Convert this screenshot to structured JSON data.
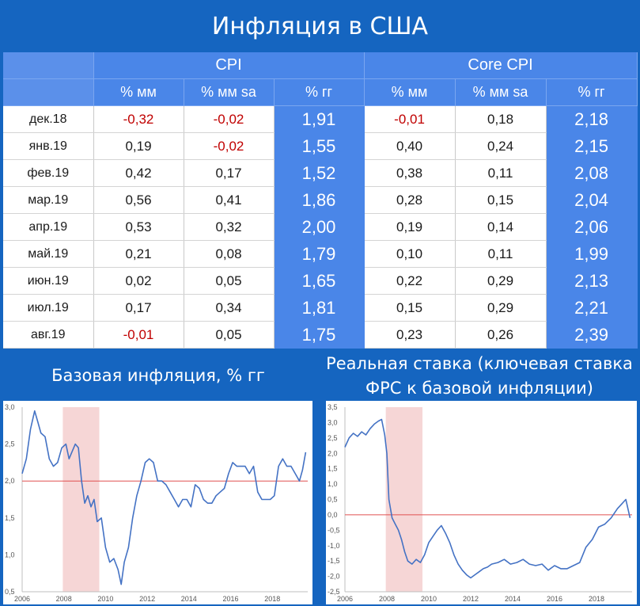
{
  "title": "Инфляция в США",
  "table": {
    "groups": [
      "CPI",
      "Core CPI"
    ],
    "subheaders": [
      "% мм",
      "% мм sa",
      "% гг",
      "% мм",
      "% мм sa",
      "% гг"
    ],
    "rows": [
      {
        "date": "дек.18",
        "cells": [
          "-0,32",
          "-0,02",
          "1,91",
          "-0,01",
          "0,18",
          "2,18"
        ]
      },
      {
        "date": "янв.19",
        "cells": [
          "0,19",
          "-0,02",
          "1,55",
          "0,40",
          "0,24",
          "2,15"
        ]
      },
      {
        "date": "фев.19",
        "cells": [
          "0,42",
          "0,17",
          "1,52",
          "0,38",
          "0,11",
          "2,08"
        ]
      },
      {
        "date": "мар.19",
        "cells": [
          "0,56",
          "0,41",
          "1,86",
          "0,28",
          "0,15",
          "2,04"
        ]
      },
      {
        "date": "апр.19",
        "cells": [
          "0,53",
          "0,32",
          "2,00",
          "0,19",
          "0,14",
          "2,06"
        ]
      },
      {
        "date": "май.19",
        "cells": [
          "0,21",
          "0,08",
          "1,79",
          "0,10",
          "0,11",
          "1,99"
        ]
      },
      {
        "date": "июн.19",
        "cells": [
          "0,02",
          "0,05",
          "1,65",
          "0,22",
          "0,29",
          "2,13"
        ]
      },
      {
        "date": "июл.19",
        "cells": [
          "0,17",
          "0,34",
          "1,81",
          "0,15",
          "0,29",
          "2,21"
        ]
      },
      {
        "date": "авг.19",
        "cells": [
          "-0,01",
          "0,05",
          "1,75",
          "0,23",
          "0,26",
          "2,39"
        ]
      }
    ]
  },
  "colors": {
    "line": "#4472c4",
    "reference": "#e05050",
    "recession": "#f6d6d6",
    "negative": "#c00000"
  },
  "chart_data": [
    {
      "type": "line",
      "title": "Базовая инфляция, % гг",
      "xlim": [
        2006,
        2019.7
      ],
      "ylim": [
        0.5,
        3.0
      ],
      "yticks": [
        "0,5",
        "1,0",
        "1,5",
        "2,0",
        "2,5",
        "3,0"
      ],
      "ytick_values": [
        0.5,
        1.0,
        1.5,
        2.0,
        2.5,
        3.0
      ],
      "xticks": [
        "2006",
        "2008",
        "2010",
        "2012",
        "2014",
        "2016",
        "2018"
      ],
      "xtick_values": [
        2006,
        2008,
        2010,
        2012,
        2014,
        2016,
        2018
      ],
      "reference_line": 2.0,
      "shaded_range": [
        2007.95,
        2009.7
      ],
      "series": [
        {
          "x": [
            2006,
            2006.2,
            2006.4,
            2006.6,
            2006.75,
            2006.9,
            2007.1,
            2007.3,
            2007.5,
            2007.7,
            2007.9,
            2008.1,
            2008.25,
            2008.4,
            2008.55,
            2008.7,
            2008.85,
            2009.0,
            2009.15,
            2009.3,
            2009.45,
            2009.6,
            2009.8,
            2010.0,
            2010.2,
            2010.4,
            2010.6,
            2010.75,
            2010.9,
            2011.1,
            2011.3,
            2011.5,
            2011.7,
            2011.9,
            2012.1,
            2012.3,
            2012.5,
            2012.7,
            2012.9,
            2013.1,
            2013.3,
            2013.5,
            2013.7,
            2013.9,
            2014.1,
            2014.3,
            2014.5,
            2014.7,
            2014.9,
            2015.1,
            2015.3,
            2015.5,
            2015.7,
            2015.9,
            2016.1,
            2016.3,
            2016.5,
            2016.7,
            2016.9,
            2017.1,
            2017.3,
            2017.5,
            2017.7,
            2017.9,
            2018.1,
            2018.3,
            2018.5,
            2018.7,
            2018.9,
            2019.1,
            2019.3,
            2019.45,
            2019.6
          ],
          "y": [
            2.1,
            2.3,
            2.7,
            2.95,
            2.8,
            2.65,
            2.6,
            2.3,
            2.2,
            2.25,
            2.45,
            2.5,
            2.3,
            2.4,
            2.5,
            2.45,
            2.0,
            1.7,
            1.8,
            1.65,
            1.75,
            1.45,
            1.5,
            1.1,
            0.9,
            0.95,
            0.8,
            0.6,
            0.9,
            1.1,
            1.5,
            1.8,
            2.0,
            2.25,
            2.3,
            2.25,
            2.0,
            2.0,
            1.95,
            1.85,
            1.75,
            1.65,
            1.75,
            1.75,
            1.65,
            1.95,
            1.9,
            1.75,
            1.7,
            1.7,
            1.8,
            1.85,
            1.9,
            2.1,
            2.25,
            2.2,
            2.2,
            2.2,
            2.1,
            2.2,
            1.85,
            1.75,
            1.75,
            1.75,
            1.8,
            2.2,
            2.3,
            2.2,
            2.2,
            2.1,
            2.0,
            2.15,
            2.39
          ]
        }
      ]
    },
    {
      "type": "line",
      "title": "Реальная ставка (ключевая ставка ФРС к базовой инфляции)",
      "xlim": [
        2006,
        2019.7
      ],
      "ylim": [
        -2.5,
        3.5
      ],
      "yticks": [
        "-2,5",
        "-2,0",
        "-1,5",
        "-1,0",
        "-0,5",
        "0,0",
        "0,5",
        "1,0",
        "1,5",
        "2,0",
        "2,5",
        "3,0",
        "3,5"
      ],
      "ytick_values": [
        -2.5,
        -2.0,
        -1.5,
        -1.0,
        -0.5,
        0.0,
        0.5,
        1.0,
        1.5,
        2.0,
        2.5,
        3.0,
        3.5
      ],
      "xticks": [
        "2006",
        "2008",
        "2010",
        "2012",
        "2014",
        "2016",
        "2018"
      ],
      "xtick_values": [
        2006,
        2008,
        2010,
        2012,
        2014,
        2016,
        2018
      ],
      "reference_line": 0.0,
      "shaded_range": [
        2007.95,
        2009.7
      ],
      "series": [
        {
          "x": [
            2006,
            2006.2,
            2006.4,
            2006.6,
            2006.8,
            2007.0,
            2007.2,
            2007.4,
            2007.6,
            2007.75,
            2007.9,
            2008.0,
            2008.1,
            2008.25,
            2008.4,
            2008.55,
            2008.7,
            2008.85,
            2009.0,
            2009.2,
            2009.4,
            2009.6,
            2009.8,
            2010.0,
            2010.2,
            2010.4,
            2010.6,
            2010.8,
            2011.0,
            2011.2,
            2011.4,
            2011.6,
            2011.8,
            2012.0,
            2012.2,
            2012.4,
            2012.6,
            2012.8,
            2013.0,
            2013.3,
            2013.6,
            2013.9,
            2014.2,
            2014.5,
            2014.8,
            2015.1,
            2015.4,
            2015.7,
            2016.0,
            2016.3,
            2016.6,
            2016.9,
            2017.2,
            2017.5,
            2017.8,
            2018.1,
            2018.4,
            2018.7,
            2019.0,
            2019.2,
            2019.4,
            2019.6
          ],
          "y": [
            2.2,
            2.5,
            2.65,
            2.55,
            2.7,
            2.6,
            2.8,
            2.95,
            3.05,
            3.1,
            2.6,
            2.0,
            0.5,
            -0.1,
            -0.3,
            -0.5,
            -0.8,
            -1.2,
            -1.5,
            -1.6,
            -1.45,
            -1.55,
            -1.3,
            -0.9,
            -0.7,
            -0.5,
            -0.35,
            -0.6,
            -0.9,
            -1.3,
            -1.6,
            -1.8,
            -1.95,
            -2.05,
            -1.95,
            -1.85,
            -1.75,
            -1.7,
            -1.6,
            -1.55,
            -1.45,
            -1.6,
            -1.55,
            -1.45,
            -1.6,
            -1.65,
            -1.6,
            -1.8,
            -1.65,
            -1.75,
            -1.75,
            -1.65,
            -1.55,
            -1.05,
            -0.8,
            -0.4,
            -0.3,
            -0.1,
            0.2,
            0.35,
            0.5,
            -0.1
          ]
        }
      ]
    }
  ]
}
